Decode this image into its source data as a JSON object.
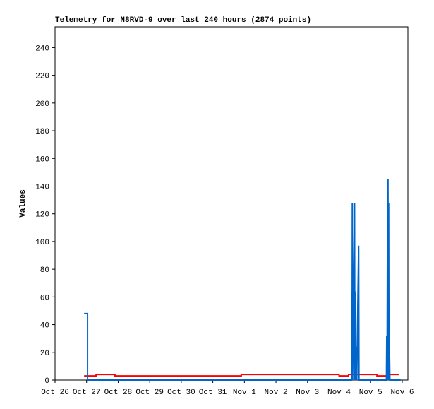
{
  "chart_data": {
    "type": "line",
    "title": "Telemetry for N8RVD-9 over last 240 hours (2874 points)",
    "y_label": "Values",
    "xlim": [
      0,
      11.18
    ],
    "ylim": [
      0,
      255
    ],
    "xticks": [
      {
        "value": 0,
        "label": "Oct 26"
      },
      {
        "value": 1,
        "label": "Oct 27"
      },
      {
        "value": 2,
        "label": "Oct 28"
      },
      {
        "value": 3,
        "label": "Oct 29"
      },
      {
        "value": 4,
        "label": "Oct 30"
      },
      {
        "value": 5,
        "label": "Oct 31"
      },
      {
        "value": 6,
        "label": "Nov 1"
      },
      {
        "value": 7,
        "label": "Nov 2"
      },
      {
        "value": 8,
        "label": "Nov 3"
      },
      {
        "value": 9,
        "label": "Nov 4"
      },
      {
        "value": 10,
        "label": "Nov 5"
      },
      {
        "value": 11,
        "label": "Nov 6"
      }
    ],
    "yticks": [
      0,
      20,
      40,
      60,
      80,
      100,
      120,
      140,
      160,
      180,
      200,
      220,
      240
    ],
    "series": [
      {
        "color": "#ff0000",
        "x": [
          0.92,
          1.3,
          1.3,
          1.9,
          1.9,
          5.9,
          5.9,
          9.0,
          9.0,
          9.3,
          9.3,
          10.2,
          10.2,
          10.6,
          10.6,
          10.9
        ],
        "values": [
          3,
          3,
          4,
          4,
          3,
          3,
          4,
          4,
          3,
          3,
          4,
          4,
          3,
          3,
          4,
          4
        ]
      },
      {
        "color": "#0066cc",
        "x": [
          0.92,
          1.03,
          1.03,
          9.39,
          9.4,
          9.41,
          9.42,
          9.43,
          9.49,
          9.5,
          9.51,
          9.52,
          9.53,
          9.55,
          9.56,
          9.62,
          9.63,
          10.5,
          10.51,
          10.52,
          10.53,
          10.55,
          10.56,
          10.57,
          10.58,
          10.6,
          10.61,
          10.95
        ],
        "values": [
          48,
          48,
          0,
          0,
          64,
          0,
          128,
          0,
          128,
          0,
          64,
          32,
          0,
          24,
          0,
          97,
          0,
          0,
          32,
          0,
          80,
          145,
          0,
          128,
          0,
          16,
          0,
          0
        ]
      }
    ]
  }
}
